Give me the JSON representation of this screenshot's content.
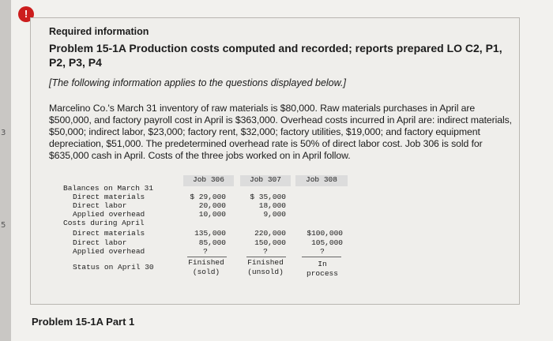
{
  "edge_numbers": [
    "3",
    "5"
  ],
  "header": {
    "alert_symbol": "!",
    "required_label": "Required information",
    "problem_title": "Problem 15-1A Production costs computed and recorded; reports prepared LO C2, P1, P2, P3, P4",
    "note": "[The following information applies to the questions displayed below.]"
  },
  "paragraph": "Marcelino Co.'s March 31 inventory of raw materials is $80,000. Raw materials purchases in April are $500,000, and factory payroll cost in April is $363,000. Overhead costs incurred in April are: indirect materials, $50,000; indirect labor, $23,000; factory rent, $32,000; factory utilities, $19,000; and factory equipment depreciation, $51,000. The predetermined overhead rate is 50% of direct labor cost. Job 306 is sold for $635,000 cash in April. Costs of the three jobs worked on in April follow.",
  "table": {
    "columns": [
      "Job 306",
      "Job 307",
      "Job 308"
    ],
    "rows": {
      "balances_heading": "Balances on March 31",
      "bal_direct_materials": "Direct materials",
      "bal_direct_labor": "Direct labor",
      "bal_applied_overhead": "Applied overhead",
      "costs_heading": "Costs during April",
      "apr_direct_materials": "Direct materials",
      "apr_direct_labor": "Direct labor",
      "apr_applied_overhead": "Applied overhead",
      "status": "Status on April 30"
    },
    "job306": {
      "bal_dm": "$ 29,000",
      "bal_dl": "20,000",
      "bal_oh": "10,000",
      "apr_dm": "135,000",
      "apr_dl": "85,000",
      "apr_oh": "?",
      "status_line1": "Finished",
      "status_line2": "(sold)"
    },
    "job307": {
      "bal_dm": "$ 35,000",
      "bal_dl": "18,000",
      "bal_oh": "9,000",
      "apr_dm": "220,000",
      "apr_dl": "150,000",
      "apr_oh": "?",
      "status_line1": "Finished",
      "status_line2": "(unsold)"
    },
    "job308": {
      "apr_dm": "$100,000",
      "apr_dl": "105,000",
      "apr_oh": "?",
      "status_line1": "In",
      "status_line2": "process"
    }
  },
  "footer": {
    "part_label": "Problem 15-1A Part 1"
  }
}
